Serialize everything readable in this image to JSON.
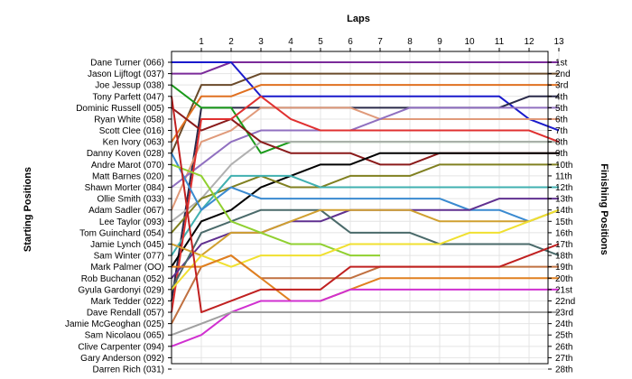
{
  "chart_data": {
    "type": "line",
    "title": "Laps",
    "xlabel": "Laps",
    "ylabel_left": "Starting Positions",
    "ylabel_right": "Finishing Positions",
    "laps": [
      1,
      2,
      3,
      4,
      5,
      6,
      7,
      8,
      9,
      10,
      11,
      12,
      13
    ],
    "ylim": [
      1,
      28
    ],
    "grid": true,
    "starting_order": [
      "Dane Turner (066)",
      "Jason Lijftogt (037)",
      "Joe Jessup (038)",
      "Tony Parfett (047)",
      "Dominic Russell (005)",
      "Ryan White (058)",
      "Scott Clee (016)",
      "Ken Ivory (063)",
      "Danny Koven (028)",
      "Andre Marot (070)",
      "Matt Barnes (020)",
      "Shawn Morter (084)",
      "Ollie Smith (033)",
      "Adam Sadler (067)",
      "Lee Taylor (093)",
      "Tom Guinchard (054)",
      "Jamie Lynch (045)",
      "Sam Winter (077)",
      "Mark Palmer (OO)",
      "Rob Buchanan (052)",
      "Gyula Gardonyi (029)",
      "Mark Tedder (022)",
      "Dave Rendall (057)",
      "Jamie McGeoghan (025)",
      "Sam Nicolaou (065)",
      "Clive Carpenter (094)",
      "Gary Anderson (092)",
      "Darren Rich (031)"
    ],
    "finishing_labels": [
      "1st",
      "2nd",
      "3rd",
      "4th",
      "5th",
      "6th",
      "7th",
      "8th",
      "9th",
      "10th",
      "11th",
      "12th",
      "13th",
      "14th",
      "15th",
      "16th",
      "17th",
      "18th",
      "19th",
      "20th",
      "21st",
      "22nd",
      "23rd",
      "24th",
      "25th",
      "26th",
      "27th",
      "28th"
    ],
    "series": [
      {
        "color": "#7a2a9a",
        "values": [
          2,
          2,
          1,
          1,
          1,
          1,
          1,
          1,
          1,
          1,
          1,
          1,
          1,
          1
        ]
      },
      {
        "color": "#6a4a2a",
        "values": [
          9,
          3,
          3,
          2,
          2,
          2,
          2,
          2,
          2,
          2,
          2,
          2,
          2,
          2
        ]
      },
      {
        "color": "#1a1acc",
        "values": [
          1,
          1,
          1,
          4,
          4,
          4,
          4,
          4,
          4,
          4,
          4,
          4,
          6,
          7
        ]
      },
      {
        "color": "#e07020",
        "values": [
          8,
          4,
          4,
          3,
          3,
          3,
          3,
          3,
          3,
          3,
          3,
          3,
          3,
          3
        ]
      },
      {
        "color": "#2a2a4a",
        "values": [
          22,
          5,
          5,
          5,
          5,
          5,
          5,
          5,
          5,
          5,
          5,
          5,
          4,
          4
        ]
      },
      {
        "color": "#e09a7a",
        "values": [
          14,
          8,
          7,
          5,
          5,
          5,
          5,
          6,
          6,
          6,
          6,
          6,
          6,
          6
        ]
      },
      {
        "color": "#9070c0",
        "values": [
          12,
          10,
          8,
          7,
          7,
          7,
          7,
          6,
          5,
          5,
          5,
          5,
          5,
          5
        ]
      },
      {
        "color": "#1a9a1a",
        "values": [
          3,
          5,
          5,
          9,
          8,
          8,
          8,
          8,
          8,
          8,
          8,
          8,
          8,
          8
        ]
      },
      {
        "color": "#b0b0b0",
        "values": [
          15,
          13,
          10,
          8,
          8,
          8,
          8,
          8,
          8,
          8,
          8,
          8,
          8,
          8
        ]
      },
      {
        "color": "#8a1a1a",
        "values": [
          5,
          7,
          6,
          8,
          9,
          9,
          9,
          10,
          10,
          9,
          9,
          9,
          9,
          9
        ]
      },
      {
        "color": "#000000",
        "values": [
          19,
          15,
          14,
          12,
          11,
          10,
          10,
          9,
          9,
          9,
          9,
          9,
          9,
          9
        ]
      },
      {
        "color": "#808020",
        "values": [
          16,
          13,
          12,
          11,
          12,
          12,
          11,
          11,
          11,
          10,
          10,
          10,
          10,
          10
        ]
      },
      {
        "color": "#40b0b0",
        "values": [
          18,
          14,
          11,
          11,
          11,
          12,
          12,
          12,
          12,
          12,
          12,
          12,
          12,
          12
        ]
      },
      {
        "color": "#e03030",
        "values": [
          23,
          6,
          6,
          4,
          6,
          7,
          7,
          7,
          7,
          7,
          7,
          7,
          7,
          8
        ]
      },
      {
        "color": "#3a8ad0",
        "values": [
          9,
          14,
          12,
          13,
          13,
          13,
          13,
          13,
          13,
          13,
          14,
          14,
          15,
          14
        ]
      },
      {
        "color": "#603090",
        "values": [
          20,
          17,
          16,
          16,
          15,
          15,
          14,
          14,
          14,
          14,
          14,
          13,
          13,
          13
        ]
      },
      {
        "color": "#4a6a6a",
        "values": [
          21,
          16,
          15,
          14,
          14,
          14,
          16,
          16,
          16,
          17,
          17,
          17,
          17,
          18
        ]
      },
      {
        "color": "#d0a030",
        "values": [
          17,
          18,
          16,
          16,
          15,
          14,
          14,
          14,
          14,
          15,
          15,
          15,
          15,
          14
        ]
      },
      {
        "color": "#90d030",
        "values": [
          10,
          11,
          15,
          16,
          17,
          17,
          18,
          18
        ]
      },
      {
        "color": "#f0e030",
        "values": [
          21,
          18,
          19,
          18,
          18,
          18,
          17,
          17,
          17,
          17,
          16,
          16,
          15,
          14
        ]
      },
      {
        "color": "#c07040",
        "values": [
          24,
          19,
          18,
          20,
          20,
          20,
          20,
          19,
          19,
          19,
          19,
          19,
          19,
          19
        ]
      },
      {
        "color": "#e08020",
        "values": [
          19,
          19,
          18,
          20,
          22,
          22,
          21,
          20,
          20,
          20,
          20,
          20,
          20,
          20
        ]
      },
      {
        "color": "#c02020",
        "values": [
          4,
          23,
          22,
          21,
          21,
          21,
          19,
          19,
          19,
          19,
          19,
          19,
          18,
          17
        ]
      },
      {
        "color": "#d030d0",
        "values": [
          26,
          25,
          23,
          22,
          22,
          22,
          21,
          21,
          21,
          21,
          21,
          21,
          21,
          21
        ]
      },
      {
        "color": "#a0a0a0",
        "values": [
          25,
          24,
          23,
          23,
          23,
          23,
          23,
          23,
          23,
          23,
          23,
          23,
          23,
          23
        ]
      }
    ]
  }
}
